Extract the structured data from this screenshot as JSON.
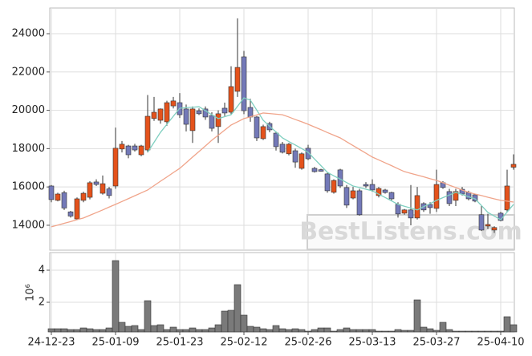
{
  "chart_data": [
    {
      "type": "candlestick",
      "up_color": "#e4521b",
      "down_color": "#7379b8",
      "grid": true,
      "ylim": [
        12700,
        25340
      ],
      "yticks": [
        14000,
        16000,
        18000,
        20000,
        22000,
        24000
      ],
      "watermark": "BestListens.com",
      "open": [
        16050,
        15300,
        15700,
        14700,
        14330,
        15300,
        15460,
        16260,
        15670,
        15900,
        16050,
        17980,
        18140,
        18140,
        17680,
        17930,
        19570,
        19480,
        19400,
        20230,
        20400,
        20070,
        18940,
        19980,
        20070,
        19730,
        19150,
        20110,
        19900,
        20990,
        22790,
        20150,
        19650,
        18520,
        19310,
        18810,
        18230,
        17730,
        17890,
        16970,
        18020,
        16970,
        16900,
        16680,
        15720,
        16890,
        15970,
        15420,
        15800,
        16130,
        16130,
        15550,
        15840,
        15710,
        15090,
        14630,
        14800,
        14380,
        15130,
        15090,
        14880,
        16220,
        15760,
        15300,
        15880,
        15710,
        15590,
        14550,
        13960,
        13750,
        14630,
        14800,
        17030
      ],
      "high": [
        16100,
        15700,
        15800,
        14750,
        15450,
        15750,
        16300,
        16400,
        16600,
        16000,
        19100,
        18400,
        18200,
        18250,
        18200,
        20800,
        20700,
        20100,
        20500,
        20700,
        20900,
        20300,
        20200,
        20100,
        20200,
        19900,
        20000,
        20400,
        22300,
        24800,
        23100,
        20600,
        19700,
        19250,
        19400,
        18900,
        18350,
        18300,
        18000,
        17800,
        18200,
        17050,
        16950,
        16750,
        16400,
        16950,
        16100,
        16000,
        15900,
        16250,
        16400,
        16000,
        15900,
        15750,
        15200,
        14850,
        16100,
        16000,
        15200,
        15200,
        16900,
        16300,
        15900,
        15900,
        16000,
        15800,
        15650,
        15000,
        14600,
        13950,
        14700,
        16900,
        17700
      ],
      "low": [
        15200,
        15250,
        14800,
        14400,
        14300,
        15200,
        15350,
        16050,
        15600,
        15400,
        15900,
        17800,
        17500,
        17850,
        17600,
        17800,
        19450,
        19300,
        19200,
        20100,
        19600,
        18900,
        18300,
        19750,
        19500,
        18900,
        18300,
        19700,
        19800,
        20700,
        19800,
        19400,
        18400,
        18450,
        18850,
        17900,
        17750,
        17650,
        17000,
        16900,
        17400,
        16750,
        16800,
        15700,
        15650,
        15950,
        14900,
        15350,
        14500,
        15950,
        15750,
        15450,
        15650,
        15300,
        14400,
        14550,
        14000,
        14300,
        14700,
        14600,
        14700,
        15900,
        15000,
        15000,
        15550,
        15300,
        15200,
        13700,
        13800,
        13600,
        14200,
        14700,
        16900
      ],
      "close": [
        15340,
        15630,
        14900,
        14480,
        15380,
        15670,
        16220,
        16130,
        16170,
        15550,
        18020,
        18230,
        17680,
        17930,
        18140,
        19690,
        19900,
        20070,
        20400,
        20490,
        19770,
        19270,
        20070,
        19820,
        19650,
        19060,
        19820,
        19860,
        21240,
        22240,
        19980,
        19650,
        18560,
        19150,
        18980,
        18100,
        17810,
        18230,
        17300,
        17730,
        17470,
        16800,
        16820,
        15800,
        16340,
        16050,
        15050,
        15800,
        14550,
        16050,
        15840,
        15920,
        15710,
        15380,
        14590,
        14800,
        14380,
        15550,
        14800,
        14920,
        16130,
        15970,
        15130,
        15760,
        15630,
        15380,
        15260,
        13750,
        14040,
        13880,
        14250,
        16050,
        17180
      ],
      "lines": [
        {
          "color": "#7fcfc0",
          "values": [
            null,
            null,
            null,
            null,
            null,
            null,
            null,
            null,
            null,
            null,
            null,
            null,
            null,
            null,
            null,
            17810,
            18330,
            18850,
            19270,
            19690,
            20110,
            20140,
            20160,
            20190,
            19980,
            19770,
            19570,
            19670,
            19770,
            20210,
            20650,
            20530,
            20010,
            19480,
            19170,
            18870,
            18560,
            18370,
            18190,
            18000,
            17810,
            17460,
            17110,
            16760,
            16580,
            16410,
            16230,
            16050,
            15970,
            15880,
            15800,
            15620,
            15450,
            15270,
            15090,
            14990,
            14900,
            14800,
            14970,
            15130,
            15300,
            15440,
            15580,
            15720,
            15610,
            15490,
            15380,
            15030,
            14670,
            14480,
            14290,
            14690,
            15090
          ]
        },
        {
          "color": "#f0a48a",
          "values": [
            13920,
            14010,
            14100,
            14190,
            14290,
            14380,
            14520,
            14660,
            14800,
            14950,
            15090,
            15240,
            15390,
            15540,
            15690,
            15840,
            16070,
            16300,
            16520,
            16750,
            16970,
            17260,
            17560,
            17850,
            18140,
            18440,
            18700,
            18970,
            19230,
            19400,
            19570,
            19660,
            19760,
            19860,
            19830,
            19800,
            19770,
            19650,
            19520,
            19400,
            19270,
            19130,
            18990,
            18840,
            18700,
            18560,
            18360,
            18160,
            17960,
            17760,
            17560,
            17410,
            17260,
            17110,
            16950,
            16800,
            16710,
            16620,
            16530,
            16430,
            16340,
            16220,
            16090,
            15970,
            15840,
            15720,
            15630,
            15550,
            15460,
            15380,
            15300,
            15260,
            15210
          ]
        }
      ]
    },
    {
      "type": "bar",
      "color": "#7a7a7a",
      "grid": true,
      "y_label": "10⁶",
      "ylim": [
        0.15,
        5.1
      ],
      "yticks": [
        2,
        4
      ],
      "categories": [
        "24-12-23",
        null,
        null,
        null,
        null,
        null,
        null,
        null,
        null,
        null,
        "25-01-09",
        null,
        null,
        null,
        null,
        null,
        null,
        null,
        null,
        null,
        "25-01-23",
        null,
        null,
        null,
        null,
        null,
        null,
        null,
        null,
        null,
        "25-02-12",
        null,
        null,
        null,
        null,
        null,
        null,
        null,
        null,
        null,
        "25-02-26",
        null,
        null,
        null,
        null,
        null,
        null,
        null,
        null,
        null,
        "25-03-13",
        null,
        null,
        null,
        null,
        null,
        null,
        null,
        null,
        null,
        "25-03-27",
        null,
        null,
        null,
        null,
        null,
        null,
        null,
        null,
        null,
        "25-04-10",
        null,
        null
      ],
      "values": [
        0.35,
        0.35,
        0.35,
        0.3,
        0.3,
        0.4,
        0.35,
        0.3,
        0.3,
        0.4,
        4.6,
        0.75,
        0.5,
        0.55,
        0.3,
        2.1,
        0.55,
        0.6,
        0.3,
        0.45,
        0.3,
        0.3,
        0.4,
        0.3,
        0.3,
        0.4,
        0.6,
        1.45,
        1.5,
        3.1,
        1.2,
        0.5,
        0.45,
        0.35,
        0.3,
        0.55,
        0.35,
        0.3,
        0.35,
        0.3,
        0.2,
        0.3,
        0.4,
        0.4,
        0.2,
        0.3,
        0.4,
        0.3,
        0.3,
        0.3,
        0.3,
        0.2,
        0.2,
        0.2,
        0.3,
        0.25,
        0.25,
        2.15,
        0.45,
        0.35,
        0.25,
        0.75,
        0.3,
        0.2,
        0.2,
        0.2,
        0.2,
        0.2,
        0.2,
        0.2,
        0.2,
        1.1,
        0.6
      ]
    }
  ]
}
